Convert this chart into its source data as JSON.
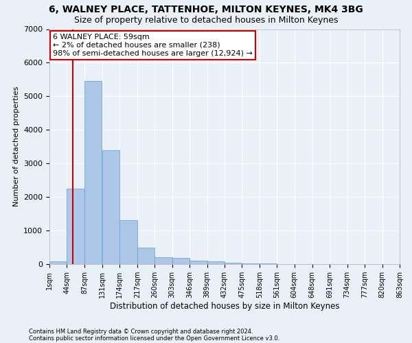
{
  "title": "6, WALNEY PLACE, TATTENHOE, MILTON KEYNES, MK4 3BG",
  "subtitle": "Size of property relative to detached houses in Milton Keynes",
  "xlabel": "Distribution of detached houses by size in Milton Keynes",
  "ylabel": "Number of detached properties",
  "annotation_line1": "6 WALNEY PLACE: 59sqm",
  "annotation_line2": "← 2% of detached houses are smaller (238)",
  "annotation_line3": "98% of semi-detached houses are larger (12,924) →",
  "footer_line1": "Contains HM Land Registry data © Crown copyright and database right 2024.",
  "footer_line2": "Contains public sector information licensed under the Open Government Licence v3.0.",
  "bin_edges": [
    1,
    44,
    87,
    131,
    174,
    217,
    260,
    303,
    346,
    389,
    432,
    475,
    518,
    561,
    604,
    648,
    691,
    734,
    777,
    820,
    863
  ],
  "bar_heights": [
    75,
    2250,
    5450,
    3400,
    1300,
    500,
    200,
    190,
    110,
    75,
    50,
    30,
    15,
    10,
    5,
    3,
    2,
    1,
    1,
    0
  ],
  "bar_color": "#aec6e8",
  "bar_edge_color": "#5a9fd4",
  "red_line_x": 59,
  "ylim": [
    0,
    7000
  ],
  "background_color": "#eaf0f8",
  "plot_bg_color": "#eaf0f8",
  "grid_color": "#ffffff",
  "title_fontsize": 10,
  "subtitle_fontsize": 9,
  "annotation_box_color": "#ffffff",
  "annotation_box_edge": "#cc0000",
  "red_line_color": "#cc0000"
}
